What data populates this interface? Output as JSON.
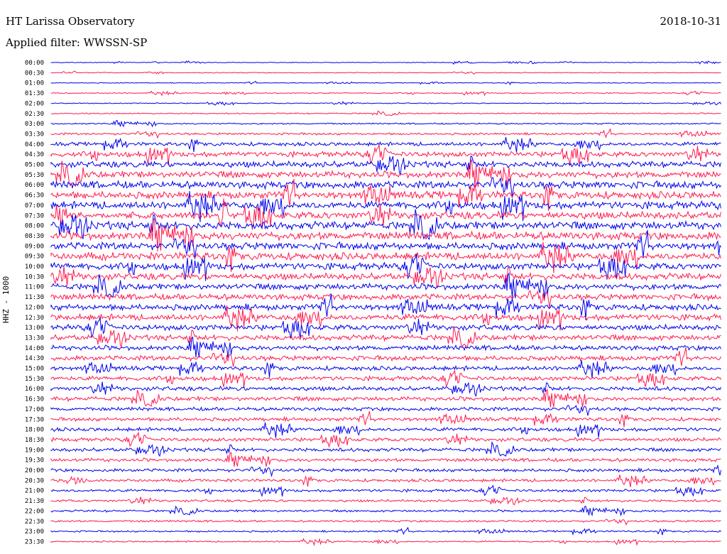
{
  "header": {
    "title": "HT Larissa Observatory",
    "date": "2018-10-31",
    "filter": "Applied filter: WWSSN-SP"
  },
  "chart_data": {
    "type": "line",
    "title": "HT Larissa Observatory",
    "ylabel": "HHZ - 1000",
    "rows": [
      "00:00",
      "00:30",
      "01:00",
      "01:30",
      "02:00",
      "02:30",
      "03:00",
      "03:30",
      "04:00",
      "04:30",
      "05:00",
      "05:30",
      "06:00",
      "06:30",
      "07:00",
      "07:30",
      "08:00",
      "08:30",
      "09:00",
      "09:30",
      "10:00",
      "10:30",
      "11:00",
      "11:30",
      "12:00",
      "12:30",
      "13:00",
      "13:30",
      "14:00",
      "14:30",
      "15:00",
      "15:30",
      "16:00",
      "16:30",
      "17:00",
      "17:30",
      "18:00",
      "18:30",
      "19:00",
      "19:30",
      "20:00",
      "20:30",
      "21:00",
      "21:30",
      "22:00",
      "22:30",
      "23:00",
      "23:30"
    ],
    "row_noise_level": [
      0.6,
      0.7,
      0.6,
      0.8,
      0.8,
      1.0,
      1.2,
      1.8,
      3.0,
      4.2,
      5.0,
      5.5,
      6.0,
      6.0,
      6.0,
      6.0,
      6.5,
      6.5,
      6.0,
      6.0,
      5.5,
      5.5,
      5.0,
      5.0,
      5.0,
      5.0,
      4.5,
      4.5,
      4.0,
      4.0,
      3.5,
      3.5,
      3.5,
      3.5,
      3.0,
      3.0,
      3.0,
      3.0,
      3.0,
      2.8,
      2.6,
      2.4,
      2.2,
      2.0,
      1.8,
      1.6,
      1.4,
      1.2
    ],
    "series_colors": [
      "#0000ee",
      "#ff1a4f"
    ],
    "grid": false
  }
}
